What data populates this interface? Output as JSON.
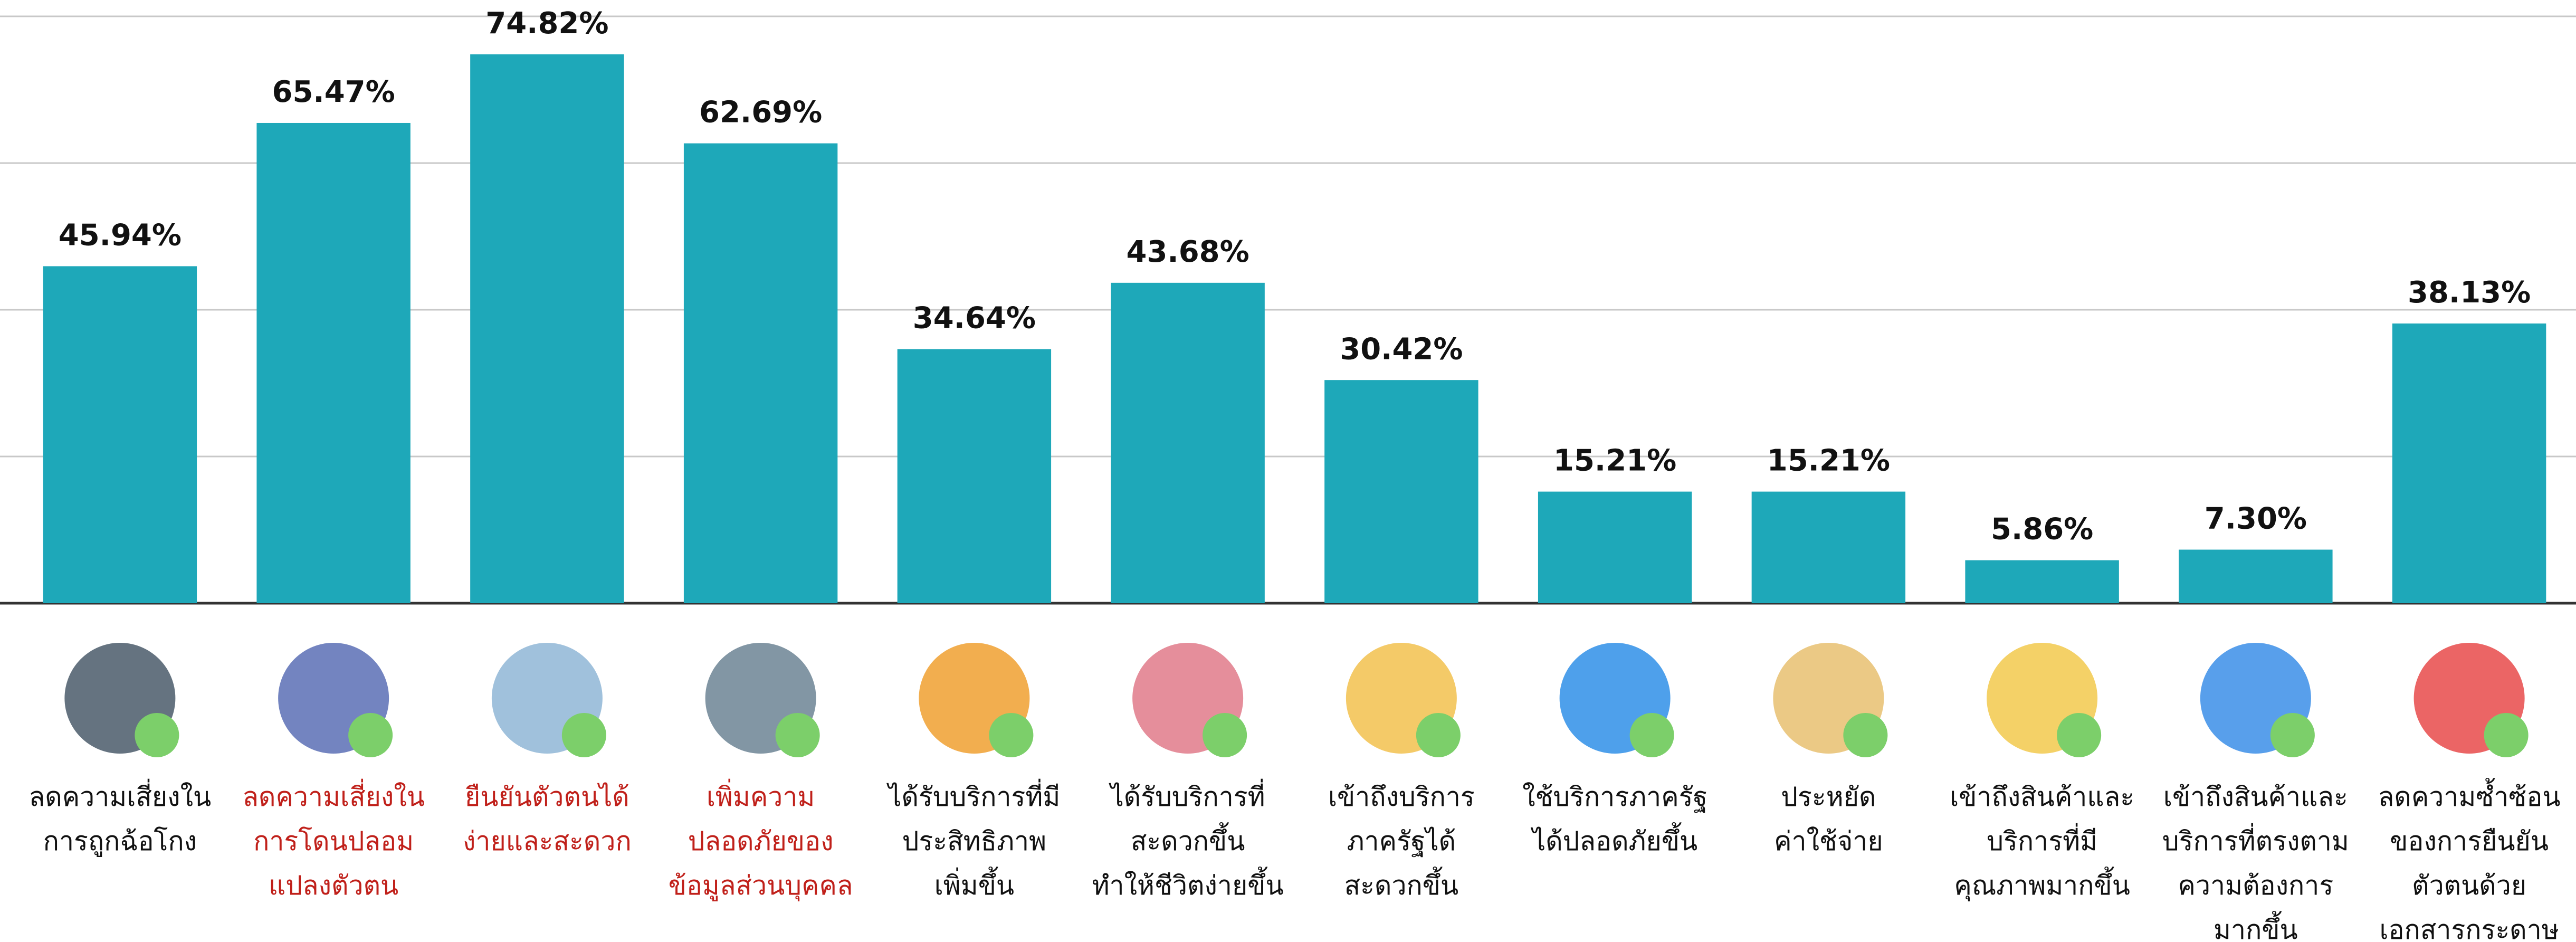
{
  "chart_data": {
    "type": "bar",
    "categories": [
      [
        "ลดความเสี่ยงใน",
        "การถูกฉ้อโกง"
      ],
      [
        "ลดความเสี่ยงใน",
        "การโดนปลอม",
        "แปลงตัวตน"
      ],
      [
        "ยืนยันตัวตนได้",
        "ง่ายและสะดวก"
      ],
      [
        "เพิ่มความ",
        "ปลอดภัยของ",
        "ข้อมูลส่วนบุคคล"
      ],
      [
        "ได้รับบริการที่มี",
        "ประสิทธิภาพ",
        "เพิ่มขึ้น"
      ],
      [
        "ได้รับบริการที่",
        "สะดวกขึ้น",
        "ทำให้ชีวิตง่ายขึ้น"
      ],
      [
        "เข้าถึงบริการ",
        "ภาครัฐได้",
        "สะดวกขึ้น"
      ],
      [
        "ใช้บริการภาครัฐ",
        "ได้ปลอดภัยขึ้น"
      ],
      [
        "ประหยัด",
        "ค่าใช้จ่าย"
      ],
      [
        "เข้าถึงสินค้าและ",
        "บริการที่มี",
        "คุณภาพมากขึ้น"
      ],
      [
        "เข้าถึงสินค้าและ",
        "บริการที่ตรงตาม",
        "ความต้องการ",
        "มากขึ้น"
      ],
      [
        "ลดความซ้ำซ้อน",
        "ของการยืนยัน",
        "ตัวตนด้วย",
        "เอกสารกระดาษ"
      ]
    ],
    "values": [
      45.94,
      65.47,
      74.82,
      62.69,
      34.64,
      43.68,
      30.42,
      15.21,
      15.21,
      5.86,
      7.3,
      38.13
    ],
    "value_labels": [
      "45.94%",
      "65.47%",
      "74.82%",
      "62.69%",
      "34.64%",
      "43.68%",
      "30.42%",
      "15.21%",
      "15.21%",
      "5.86%",
      "7.30%",
      "38.13%"
    ],
    "color": "#1ea8b9",
    "label_colors": [
      "#111111",
      "#c0201a",
      "#c0201a",
      "#c0201a",
      "#111111",
      "#111111",
      "#111111",
      "#111111",
      "#111111",
      "#111111",
      "#111111",
      "#111111"
    ],
    "ylim": [
      0,
      80
    ],
    "yticks": [
      0,
      20,
      40,
      60,
      80
    ],
    "grid": true
  }
}
